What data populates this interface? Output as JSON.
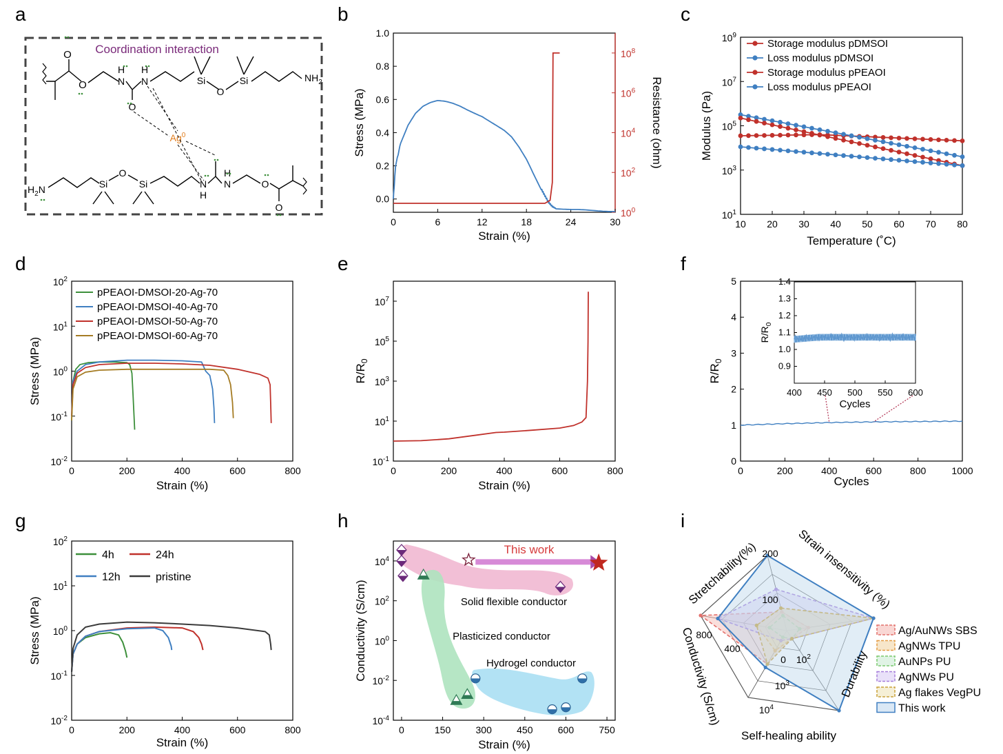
{
  "panel_letters": [
    "a",
    "b",
    "c",
    "d",
    "e",
    "f",
    "g",
    "h",
    "i"
  ],
  "panel_a": {
    "title": "Coordination interaction",
    "ag_label": "Ag",
    "ag_sup": "0",
    "labels": {
      "nh2_top": "NH",
      "nh2_top_sub": "2",
      "h2n_bottom": "H",
      "h2n_bottom_sub": "2",
      "h2n_bottom_n": "N",
      "si": "Si",
      "o": "O",
      "n": "N",
      "h": "H"
    }
  },
  "colors": {
    "blue": "#3f7fc1",
    "red": "#c0312b",
    "darkred": "#b22525",
    "green": "#3c8f3a",
    "gold": "#a57c24",
    "gray": "#3a3a3a",
    "purple": "#7a2a7a",
    "orange": "#e07b1a",
    "pink": "#f0b4cf",
    "lightgreen": "#aee3bf",
    "lightblue": "#aee0f3",
    "lavender": "#c9b6ef"
  },
  "chart_data": [
    {
      "id": "b",
      "type": "line",
      "xlabel": "Strain (%)",
      "ylabel": "Stress (MPa)",
      "y2label": "Resistance (ohm)",
      "xlim": [
        0,
        30
      ],
      "ylim": [
        -0.08,
        1.0
      ],
      "y2lim_log10": [
        0,
        9
      ],
      "xticks": [
        "0",
        "6",
        "12",
        "18",
        "24",
        "30"
      ],
      "yticks": [
        "0.0",
        "0.2",
        "0.4",
        "0.6",
        "0.8",
        "1.0"
      ],
      "y2ticks": [
        {
          "base": "10",
          "exp": "0",
          "v": 0
        },
        {
          "base": "10",
          "exp": "2",
          "v": 2
        },
        {
          "base": "10",
          "exp": "4",
          "v": 4
        },
        {
          "base": "10",
          "exp": "6",
          "v": 6
        },
        {
          "base": "10",
          "exp": "8",
          "v": 8
        }
      ],
      "series": [
        {
          "axis": "left",
          "color": "blue",
          "x": [
            0,
            0.3,
            1,
            2,
            3,
            4,
            5,
            6,
            7,
            8,
            9,
            10,
            11,
            12,
            13,
            14,
            15,
            16,
            17,
            18,
            19,
            20,
            20.5,
            21,
            21.5,
            22,
            23,
            24,
            26,
            28,
            30
          ],
          "y": [
            0,
            0.2,
            0.34,
            0.45,
            0.52,
            0.56,
            0.58,
            0.59,
            0.585,
            0.575,
            0.56,
            0.54,
            0.52,
            0.5,
            0.47,
            0.44,
            0.41,
            0.37,
            0.31,
            0.24,
            0.15,
            0.06,
            0.02,
            -0.02,
            -0.045,
            -0.058,
            -0.063,
            -0.067,
            -0.068,
            -0.07,
            -0.072
          ]
        },
        {
          "axis": "right",
          "color": "red",
          "x": [
            0,
            19,
            20.5,
            21.2,
            21.5,
            21.6,
            22.5
          ],
          "log10y": [
            0.45,
            0.45,
            0.45,
            0.6,
            1.5,
            8.0,
            8.0
          ]
        }
      ]
    },
    {
      "id": "c",
      "type": "line",
      "xlabel": "Temperature (˚C)",
      "ylabel": "Modulus (Pa)",
      "xlim": [
        10,
        80
      ],
      "ylim_log10": [
        1,
        9
      ],
      "xticks": [
        "10",
        "20",
        "30",
        "40",
        "50",
        "60",
        "70",
        "80"
      ],
      "yticks": [
        {
          "base": "10",
          "exp": "1",
          "v": 1
        },
        {
          "base": "10",
          "exp": "3",
          "v": 3
        },
        {
          "base": "10",
          "exp": "5",
          "v": 5
        },
        {
          "base": "10",
          "exp": "7",
          "v": 7
        },
        {
          "base": "10",
          "exp": "9",
          "v": 9
        }
      ],
      "legend": "top-left",
      "series": [
        {
          "name": "Storage modulus pDMSOI",
          "color": "red",
          "x0": 10,
          "x1": 80,
          "log0": 4.55,
          "log1": 4.27
        },
        {
          "name": "Loss modulus pDMSOI",
          "color": "blue",
          "x0": 10,
          "x1": 80,
          "log0": 5.5,
          "log1": 3.6
        },
        {
          "name": "Storage modulus pPEAOI",
          "color": "red",
          "x0": 10,
          "x1": 80,
          "log0": 5.35,
          "log1": 3.2
        },
        {
          "name": "Loss modulus pPEAOI",
          "color": "blue",
          "x0": 10,
          "x1": 80,
          "log0": 4.05,
          "log1": 3.2
        }
      ]
    },
    {
      "id": "d",
      "type": "line",
      "xlabel": "Strain (%)",
      "ylabel": "Stress (MPa)",
      "xlim": [
        0,
        800
      ],
      "ylim_log10": [
        -2,
        2
      ],
      "xticks": [
        "0",
        "200",
        "400",
        "600",
        "800"
      ],
      "yticks": [
        {
          "base": "10",
          "exp": "-2",
          "v": -2
        },
        {
          "base": "10",
          "exp": "-1",
          "v": -1
        },
        {
          "base": "10",
          "exp": "0",
          "v": 0
        },
        {
          "base": "10",
          "exp": "1",
          "v": 1
        },
        {
          "base": "10",
          "exp": "2",
          "v": 2
        }
      ],
      "legend": "top-left",
      "series": [
        {
          "name": "pPEAOI-DMSOI-20-Ag-70",
          "color": "green",
          "x": [
            0,
            5,
            15,
            30,
            60,
            100,
            150,
            200,
            210,
            218,
            222,
            228
          ],
          "y": [
            0.08,
            0.6,
            1.1,
            1.4,
            1.55,
            1.6,
            1.6,
            1.55,
            1.4,
            0.9,
            0.3,
            0.05
          ]
        },
        {
          "name": "pPEAOI-DMSOI-40-Ag-70",
          "color": "blue",
          "x": [
            0,
            5,
            20,
            50,
            100,
            200,
            300,
            400,
            470,
            485,
            500,
            510,
            515,
            517
          ],
          "y": [
            0.1,
            0.6,
            1.0,
            1.4,
            1.6,
            1.75,
            1.75,
            1.7,
            1.6,
            1.0,
            0.8,
            0.4,
            0.15,
            0.07
          ]
        },
        {
          "name": "pPEAOI-DMSOI-50-Ag-70",
          "color": "red",
          "x": [
            0,
            5,
            20,
            50,
            100,
            200,
            300,
            400,
            500,
            600,
            680,
            710,
            718,
            720,
            722
          ],
          "y": [
            0.1,
            0.5,
            0.9,
            1.2,
            1.4,
            1.5,
            1.5,
            1.45,
            1.35,
            1.1,
            0.85,
            0.7,
            0.5,
            0.2,
            0.07
          ]
        },
        {
          "name": "pPEAOI-DMSOI-60-Ag-70",
          "color": "gold",
          "x": [
            0,
            5,
            20,
            50,
            100,
            200,
            300,
            400,
            500,
            550,
            565,
            575,
            582,
            585
          ],
          "y": [
            0.08,
            0.4,
            0.75,
            0.95,
            1.05,
            1.1,
            1.1,
            1.1,
            1.1,
            1.05,
            0.8,
            0.5,
            0.2,
            0.09
          ]
        }
      ]
    },
    {
      "id": "e",
      "type": "line",
      "xlabel": "Strain (%)",
      "ylabel": "R/R",
      "ylabel_sub": "0",
      "xlim": [
        0,
        800
      ],
      "ylim_log10": [
        -1,
        8
      ],
      "xticks": [
        "0",
        "200",
        "400",
        "600",
        "800"
      ],
      "yticks": [
        {
          "base": "10",
          "exp": "-1",
          "v": -1
        },
        {
          "base": "10",
          "exp": "1",
          "v": 1
        },
        {
          "base": "10",
          "exp": "3",
          "v": 3
        },
        {
          "base": "10",
          "exp": "5",
          "v": 5
        },
        {
          "base": "10",
          "exp": "7",
          "v": 7
        }
      ],
      "series": [
        {
          "color": "red",
          "x": [
            0,
            100,
            200,
            300,
            370,
            400,
            500,
            600,
            650,
            680,
            695,
            700,
            702,
            703
          ],
          "y": [
            1,
            1.05,
            1.3,
            2.0,
            2.7,
            2.8,
            3.5,
            4.5,
            6,
            9,
            15,
            1000,
            100000,
            30000000
          ]
        }
      ]
    },
    {
      "id": "f",
      "type": "line",
      "xlabel": "Cycles",
      "ylabel": "R/R",
      "ylabel_sub": "0",
      "xlim": [
        0,
        1000
      ],
      "ylim": [
        0,
        5
      ],
      "xticks": [
        "0",
        "200",
        "400",
        "600",
        "800",
        "1000"
      ],
      "yticks": [
        "0",
        "1",
        "2",
        "3",
        "4",
        "5"
      ],
      "series": [
        {
          "color": "blue",
          "x": [
            0,
            200,
            400,
            600,
            800,
            1000
          ],
          "y": [
            1.0,
            1.04,
            1.07,
            1.09,
            1.1,
            1.11
          ]
        }
      ],
      "inset": {
        "xlabel": "Cycles",
        "ylabel": "R/R",
        "ylabel_sub": "0",
        "xlim": [
          400,
          600
        ],
        "ylim": [
          0.8,
          1.4
        ],
        "xticks": [
          "400",
          "450",
          "500",
          "550",
          "600"
        ],
        "yticks": [
          "0.9",
          "1.0",
          "1.1",
          "1.2",
          "1.3",
          "1.4"
        ],
        "series": [
          {
            "color": "blue",
            "x": [
              400,
              420,
              440,
              460,
              500,
              550,
              600
            ],
            "y": [
              1.055,
              1.065,
              1.075,
              1.07,
              1.072,
              1.073,
              1.075
            ]
          }
        ]
      }
    },
    {
      "id": "g",
      "type": "line",
      "xlabel": "Strain (%)",
      "ylabel": "Stress (MPa)",
      "xlim": [
        0,
        800
      ],
      "ylim_log10": [
        -2,
        2
      ],
      "xticks": [
        "0",
        "200",
        "400",
        "600",
        "800"
      ],
      "yticks": [
        {
          "base": "10",
          "exp": "-2",
          "v": -2
        },
        {
          "base": "10",
          "exp": "-1",
          "v": -1
        },
        {
          "base": "10",
          "exp": "0",
          "v": 0
        },
        {
          "base": "10",
          "exp": "1",
          "v": 1
        },
        {
          "base": "10",
          "exp": "2",
          "v": 2
        }
      ],
      "legend": "top-left",
      "series": [
        {
          "name": "4h",
          "color": "green",
          "x": [
            0,
            5,
            20,
            50,
            100,
            140,
            170,
            185,
            195,
            200
          ],
          "y": [
            0.12,
            0.3,
            0.5,
            0.7,
            0.85,
            0.9,
            0.8,
            0.55,
            0.35,
            0.25
          ]
        },
        {
          "name": "24h",
          "color": "red",
          "x": [
            0,
            5,
            20,
            50,
            100,
            200,
            300,
            400,
            440,
            460,
            470,
            475
          ],
          "y": [
            0.12,
            0.3,
            0.5,
            0.75,
            0.95,
            1.15,
            1.2,
            1.15,
            0.95,
            0.7,
            0.5,
            0.37
          ]
        },
        {
          "name": "12h",
          "color": "blue",
          "x": [
            0,
            5,
            20,
            50,
            100,
            200,
            300,
            330,
            350,
            360,
            362
          ],
          "y": [
            0.12,
            0.3,
            0.5,
            0.75,
            0.95,
            1.1,
            1.15,
            1.0,
            0.7,
            0.45,
            0.37
          ]
        },
        {
          "name": "pristine",
          "color": "gray",
          "x": [
            0,
            5,
            20,
            50,
            100,
            200,
            300,
            400,
            500,
            600,
            700,
            715,
            720,
            722
          ],
          "y": [
            0.12,
            0.4,
            0.8,
            1.2,
            1.4,
            1.55,
            1.5,
            1.4,
            1.3,
            1.15,
            0.95,
            0.8,
            0.5,
            0.37
          ]
        }
      ]
    },
    {
      "id": "h",
      "type": "scatter",
      "xlabel": "Strain (%)",
      "ylabel": "Conductivity (S/cm)",
      "xlim": [
        -30,
        780
      ],
      "ylim_log10": [
        -4,
        5
      ],
      "xticks": [
        "0",
        "150",
        "300",
        "450",
        "600",
        "750"
      ],
      "yticks": [
        {
          "base": "10",
          "exp": "-4",
          "v": -4
        },
        {
          "base": "10",
          "exp": "-2",
          "v": -2
        },
        {
          "base": "10",
          "exp": "0",
          "v": 0
        },
        {
          "base": "10",
          "exp": "2",
          "v": 2
        },
        {
          "base": "10",
          "exp": "4",
          "v": 4
        }
      ],
      "annotations": [
        "This work",
        "Solid flexible conductor",
        "Plasticized conductor",
        "Hydrogel conductor"
      ],
      "points": [
        {
          "group": "solid",
          "marker": "diamond",
          "x": 0,
          "log10y": 4.55
        },
        {
          "group": "solid",
          "marker": "diamond",
          "x": 0,
          "log10y": 4.0
        },
        {
          "group": "solid",
          "marker": "diamond",
          "x": 5,
          "log10y": 3.25
        },
        {
          "group": "solid",
          "marker": "diamond",
          "x": 580,
          "log10y": 2.7
        },
        {
          "group": "solid",
          "marker": "star",
          "x": 245,
          "log10y": 4.05
        },
        {
          "group": "this",
          "marker": "bigstar",
          "x": 720,
          "log10y": 3.9
        },
        {
          "group": "plasticized",
          "marker": "triangle",
          "x": 80,
          "log10y": 3.3
        },
        {
          "group": "plasticized",
          "marker": "triangle",
          "x": 200,
          "log10y": -3.0
        },
        {
          "group": "plasticized",
          "marker": "triangle",
          "x": 240,
          "log10y": -2.7
        },
        {
          "group": "hydrogel",
          "marker": "circle",
          "x": 270,
          "log10y": -1.9
        },
        {
          "group": "hydrogel",
          "marker": "circle",
          "x": 550,
          "log10y": -3.45
        },
        {
          "group": "hydrogel",
          "marker": "circle",
          "x": 600,
          "log10y": -3.35
        },
        {
          "group": "hydrogel",
          "marker": "circle",
          "x": 660,
          "log10y": -1.9
        }
      ]
    },
    {
      "id": "i",
      "type": "radar",
      "axes": [
        "Stretchability(%)",
        "Strain insensitivity (%)",
        "Durability",
        "Self-healing ability",
        "Conductivity (S/cm)"
      ],
      "axis_tick_labels": [
        "200",
        "100",
        "0",
        "10",
        "10",
        "10"
      ],
      "tick_exps": [
        "2",
        "3",
        "4"
      ],
      "conductivity_ticks": [
        "800",
        "400"
      ],
      "series": [
        {
          "name": "Ag/AuNWs SBS",
          "color": "#e3706c",
          "fill": "#f4b6b0",
          "values": [
            0.25,
            0.25,
            0.1,
            0.5,
            1.0
          ]
        },
        {
          "name": "AgNWs TPU",
          "color": "#e49b43",
          "fill": "#f1d29f",
          "values": [
            0.3,
            1.0,
            0.1,
            0.3,
            0.35
          ]
        },
        {
          "name": "AuNPs PU",
          "color": "#7ac96e",
          "fill": "#c6ead0",
          "values": [
            0.2,
            0.15,
            0.1,
            0.1,
            0.2
          ]
        },
        {
          "name": "AgNWs PU",
          "color": "#a77fdb",
          "fill": "#d7c8f4",
          "values": [
            0.55,
            1.0,
            0.1,
            0.15,
            0.8
          ]
        },
        {
          "name": "Ag flakes VegPU",
          "color": "#caa23a",
          "fill": "#ece1b4",
          "values": [
            0.3,
            1.0,
            0.1,
            0.5,
            0.35
          ]
        },
        {
          "name": "This work",
          "color": "#3f7fc1",
          "fill": "#bcd6ec",
          "values": [
            1.0,
            1.0,
            1.0,
            0.55,
            0.8
          ]
        }
      ]
    }
  ]
}
